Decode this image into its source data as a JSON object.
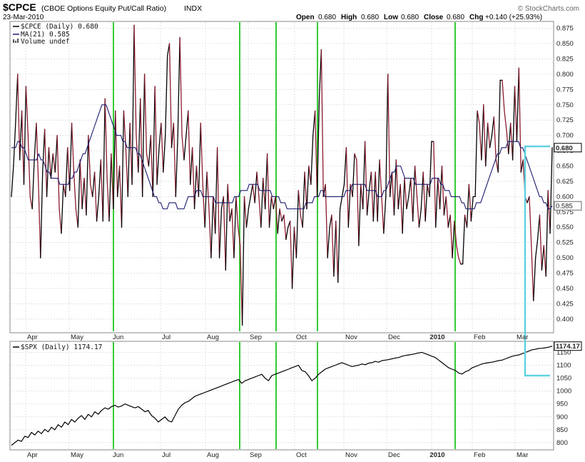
{
  "header": {
    "symbol": "$CPCE",
    "description": "(CBOE Options Equity Put/Call Ratio)",
    "exchange": "INDX",
    "date": "23-Mar-2010",
    "watermark": "© StockCharts.com",
    "ohlc": {
      "open_label": "Open",
      "open": "0.680",
      "high_label": "High",
      "high": "0.680",
      "low_label": "Low",
      "low": "0.680",
      "close_label": "Close",
      "close": "0.680",
      "chg_label": "Chg",
      "chg": "+0.140 (+25.93%)"
    }
  },
  "legend_top": [
    {
      "text": "$CPCE (Daily) 0.680",
      "color": "#000000"
    },
    {
      "text": "MA(21) 0.585",
      "color": "#1a1a6e"
    },
    {
      "text": "Volume undef",
      "color": "#555555"
    }
  ],
  "legend_bottom": [
    {
      "text": "$SPX (Daily) 1174.17",
      "color": "#000000"
    }
  ],
  "colors": {
    "up": "#000000",
    "down": "#8b1a2e",
    "ma": "#1a1a6e",
    "spx": "#000000",
    "grid": "#cfcfcf",
    "vlines": "#33cc33",
    "box": "#5fd3e0"
  },
  "chart_data": [
    {
      "type": "line",
      "title": "$CPCE (CBOE Options Equity Put/Call Ratio)",
      "xlabels": [
        "Apr",
        "May",
        "Jun",
        "Jul",
        "Aug",
        "Sep",
        "Oct",
        "Nov",
        "Dec",
        "2010",
        "Feb",
        "Mar"
      ],
      "ylim": [
        0.38,
        0.885
      ],
      "yticks": [
        0.4,
        0.425,
        0.45,
        0.475,
        0.5,
        0.525,
        0.55,
        0.575,
        0.6,
        0.625,
        0.65,
        0.675,
        0.7,
        0.725,
        0.75,
        0.775,
        0.8,
        0.825,
        0.85,
        0.875
      ],
      "grid": true,
      "last_value": "0.680",
      "ma_last_value": "0.585",
      "series": [
        {
          "name": "$CPCE (Daily)",
          "values": [
            0.6,
            0.65,
            0.72,
            0.8,
            0.66,
            0.74,
            0.62,
            0.78,
            0.7,
            0.6,
            0.58,
            0.66,
            0.72,
            0.62,
            0.5,
            0.64,
            0.71,
            0.6,
            0.68,
            0.63,
            0.67,
            0.64,
            0.7,
            0.58,
            0.54,
            0.62,
            0.6,
            0.68,
            0.61,
            0.72,
            0.64,
            0.58,
            0.55,
            0.66,
            0.58,
            0.63,
            0.57,
            0.7,
            0.62,
            0.6,
            0.64,
            0.56,
            0.6,
            0.66,
            0.56,
            0.76,
            0.63,
            0.56,
            0.67,
            0.58,
            0.74,
            0.6,
            0.65,
            0.55,
            0.74,
            0.68,
            0.6,
            0.72,
            0.62,
            0.88,
            0.7,
            0.64,
            0.76,
            0.6,
            0.8,
            0.67,
            0.65,
            0.7,
            0.6,
            0.78,
            0.62,
            0.68,
            0.72,
            0.64,
            0.7,
            0.83,
            0.85,
            0.68,
            0.72,
            0.6,
            0.7,
            0.86,
            0.7,
            0.66,
            0.7,
            0.74,
            0.62,
            0.68,
            0.58,
            0.65,
            0.6,
            0.72,
            0.62,
            0.55,
            0.64,
            0.58,
            0.5,
            0.6,
            0.54,
            0.68,
            0.5,
            0.58,
            0.6,
            0.48,
            0.62,
            0.56,
            0.58,
            0.5,
            0.6,
            0.55,
            0.52,
            0.39,
            0.6,
            0.55,
            0.58,
            0.6,
            0.62,
            0.59,
            0.64,
            0.6,
            0.55,
            0.63,
            0.58,
            0.67,
            0.55,
            0.6,
            0.58,
            0.6,
            0.54,
            0.58,
            0.56,
            0.57,
            0.53,
            0.55,
            0.56,
            0.45,
            0.55,
            0.5,
            0.61,
            0.57,
            0.55,
            0.64,
            0.58,
            0.65,
            0.62,
            0.7,
            0.74,
            0.6,
            0.76,
            0.84,
            0.6,
            0.62,
            0.5,
            0.55,
            0.57,
            0.47,
            0.56,
            0.46,
            0.58,
            0.6,
            0.62,
            0.68,
            0.55,
            0.62,
            0.6,
            0.67,
            0.66,
            0.52,
            0.62,
            0.58,
            0.69,
            0.57,
            0.61,
            0.64,
            0.56,
            0.64,
            0.56,
            0.66,
            0.6,
            0.54,
            0.6,
            0.8,
            0.6,
            0.64,
            0.57,
            0.66,
            0.58,
            0.62,
            0.54,
            0.63,
            0.58,
            0.6,
            0.63,
            0.56,
            0.65,
            0.6,
            0.55,
            0.58,
            0.64,
            0.56,
            0.62,
            0.6,
            0.69,
            0.69,
            0.55,
            0.63,
            0.58,
            0.65,
            0.57,
            0.6,
            0.55,
            0.57,
            0.5,
            0.56,
            0.52,
            0.5,
            0.49,
            0.49,
            0.57,
            0.55,
            0.62,
            0.56,
            0.6,
            0.6,
            0.74,
            0.72,
            0.66,
            0.75,
            0.65,
            0.72,
            0.68,
            0.7,
            0.73,
            0.66,
            0.64,
            0.79,
            0.79,
            0.74,
            0.71,
            0.67,
            0.72,
            0.66,
            0.78,
            0.69,
            0.81,
            0.64,
            0.66,
            0.6,
            0.59,
            0.6,
            0.52,
            0.43,
            0.5,
            0.53,
            0.57,
            0.48,
            0.52,
            0.47,
            0.61,
            0.54,
            0.68
          ]
        },
        {
          "name": "MA(21)",
          "values": [
            0.68,
            0.68,
            0.68,
            0.69,
            0.69,
            0.68,
            0.68,
            0.67,
            0.66,
            0.66,
            0.66,
            0.66,
            0.66,
            0.67,
            0.66,
            0.66,
            0.65,
            0.64,
            0.64,
            0.63,
            0.63,
            0.63,
            0.63,
            0.62,
            0.62,
            0.62,
            0.62,
            0.62,
            0.63,
            0.63,
            0.64,
            0.64,
            0.65,
            0.66,
            0.67,
            0.67,
            0.68,
            0.69,
            0.7,
            0.71,
            0.72,
            0.73,
            0.74,
            0.75,
            0.75,
            0.75,
            0.74,
            0.73,
            0.72,
            0.71,
            0.7,
            0.7,
            0.7,
            0.69,
            0.69,
            0.68,
            0.68,
            0.68,
            0.68,
            0.68,
            0.67,
            0.67,
            0.66,
            0.65,
            0.64,
            0.63,
            0.62,
            0.61,
            0.6,
            0.6,
            0.59,
            0.59,
            0.58,
            0.58,
            0.58,
            0.59,
            0.59,
            0.59,
            0.59,
            0.58,
            0.58,
            0.58,
            0.58,
            0.59,
            0.6,
            0.6,
            0.6,
            0.6,
            0.61,
            0.61,
            0.61,
            0.6,
            0.6,
            0.6,
            0.6,
            0.6,
            0.6,
            0.59,
            0.59,
            0.59,
            0.59,
            0.59,
            0.59,
            0.59,
            0.59,
            0.59,
            0.6,
            0.6,
            0.6,
            0.61,
            0.61,
            0.61,
            0.61,
            0.62,
            0.62,
            0.62,
            0.62,
            0.62,
            0.61,
            0.61,
            0.61,
            0.61,
            0.61,
            0.61,
            0.6,
            0.6,
            0.6,
            0.6,
            0.59,
            0.59,
            0.59,
            0.58,
            0.58,
            0.58,
            0.58,
            0.58,
            0.58,
            0.58,
            0.58,
            0.58,
            0.59,
            0.59,
            0.59,
            0.59,
            0.6,
            0.6,
            0.6,
            0.61,
            0.61,
            0.6,
            0.6,
            0.6,
            0.6,
            0.6,
            0.6,
            0.6,
            0.6,
            0.6,
            0.6,
            0.61,
            0.61,
            0.61,
            0.62,
            0.62,
            0.62,
            0.62,
            0.62,
            0.62,
            0.62,
            0.61,
            0.61,
            0.61,
            0.61,
            0.61,
            0.6,
            0.6,
            0.6,
            0.61,
            0.61,
            0.62,
            0.63,
            0.64,
            0.64,
            0.65,
            0.65,
            0.65,
            0.64,
            0.63,
            0.63,
            0.63,
            0.63,
            0.63,
            0.62,
            0.62,
            0.62,
            0.62,
            0.62,
            0.62,
            0.62,
            0.62,
            0.63,
            0.63,
            0.63,
            0.63,
            0.62,
            0.62,
            0.61,
            0.61,
            0.61,
            0.6,
            0.6,
            0.6,
            0.6,
            0.6,
            0.59,
            0.59,
            0.58,
            0.58,
            0.58,
            0.58,
            0.58,
            0.59,
            0.59,
            0.59,
            0.6,
            0.61,
            0.62,
            0.63,
            0.64,
            0.65,
            0.66,
            0.67,
            0.67,
            0.68,
            0.68,
            0.68,
            0.69,
            0.69,
            0.69,
            0.69,
            0.69,
            0.69,
            0.68,
            0.68,
            0.67,
            0.66,
            0.65,
            0.64,
            0.63,
            0.62,
            0.61,
            0.6,
            0.6,
            0.59,
            0.59,
            0.58,
            0.58,
            0.585
          ]
        }
      ]
    },
    {
      "type": "line",
      "title": "$SPX (Daily)",
      "xlabels": [
        "Apr",
        "May",
        "Jun",
        "Jul",
        "Aug",
        "Sep",
        "Oct",
        "Nov",
        "Dec",
        "2010",
        "Feb",
        "Mar"
      ],
      "ylim": [
        775,
        1190
      ],
      "yticks": [
        800,
        850,
        900,
        950,
        1000,
        1050,
        1100,
        1150
      ],
      "grid": true,
      "last_value": "1174.17",
      "series": [
        {
          "name": "$SPX (Daily)",
          "values": [
            790,
            800,
            810,
            805,
            825,
            820,
            840,
            830,
            845,
            835,
            852,
            842,
            860,
            850,
            870,
            860,
            880,
            870,
            890,
            880,
            895,
            905,
            890,
            910,
            900,
            920,
            910,
            925,
            935,
            930,
            940,
            945,
            938,
            942,
            950,
            945,
            940,
            935,
            940,
            930,
            920,
            925,
            905,
            895,
            880,
            890,
            900,
            885,
            880,
            905,
            930,
            945,
            955,
            960,
            970,
            980,
            985,
            990,
            995,
            1000,
            1005,
            1010,
            1015,
            1020,
            1025,
            1030,
            1035,
            1040,
            1045,
            1030,
            1040,
            1045,
            1050,
            1055,
            1060,
            1065,
            1050,
            1040,
            1060,
            1065,
            1070,
            1075,
            1080,
            1085,
            1090,
            1095,
            1100,
            1080,
            1075,
            1060,
            1040,
            1050,
            1065,
            1075,
            1085,
            1090,
            1095,
            1100,
            1105,
            1110,
            1105,
            1100,
            1095,
            1098,
            1100,
            1105,
            1102,
            1108,
            1110,
            1115,
            1112,
            1118,
            1120,
            1122,
            1125,
            1128,
            1130,
            1135,
            1138,
            1140,
            1142,
            1145,
            1148,
            1150,
            1145,
            1140,
            1135,
            1130,
            1120,
            1110,
            1100,
            1090,
            1085,
            1080,
            1070,
            1066,
            1075,
            1080,
            1090,
            1095,
            1100,
            1105,
            1108,
            1110,
            1112,
            1115,
            1118,
            1120,
            1125,
            1130,
            1135,
            1138,
            1140,
            1145,
            1150,
            1155,
            1160,
            1162,
            1165,
            1166,
            1168,
            1170,
            1174.17
          ]
        }
      ]
    }
  ]
}
